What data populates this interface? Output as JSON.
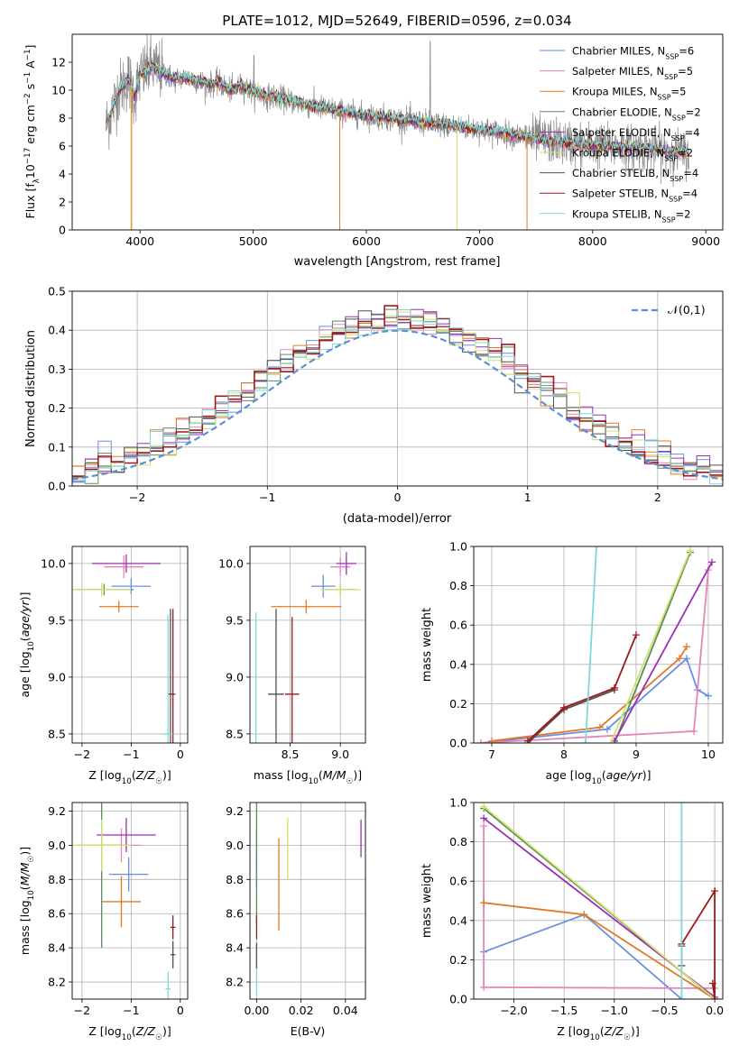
{
  "figure": {
    "title": "PLATE=1012, MJD=52649, FIBERID=0596, z=0.034"
  },
  "series": [
    {
      "key": "cm",
      "name": "Chabrier MILES",
      "nssp": 6,
      "color": "#6a8ee0"
    },
    {
      "key": "sm",
      "name": "Salpeter MILES",
      "nssp": 5,
      "color": "#e683b8"
    },
    {
      "key": "km",
      "name": "Kroupa MILES",
      "nssp": 5,
      "color": "#e07a28"
    },
    {
      "key": "ce",
      "name": "Chabrier ELODIE",
      "nssp": 2,
      "color": "#5b8a5b"
    },
    {
      "key": "se",
      "name": "Salpeter ELODIE",
      "nssp": 4,
      "color": "#9b2fb5"
    },
    {
      "key": "ke",
      "name": "Kroupa ELODIE",
      "nssp": 2,
      "color": "#cfe26a"
    },
    {
      "key": "cs",
      "name": "Chabrier STELIB",
      "nssp": 4,
      "color": "#505050"
    },
    {
      "key": "ss",
      "name": "Salpeter STELIB",
      "nssp": 4,
      "color": "#9e1a1a"
    },
    {
      "key": "ks",
      "name": "Kroupa STELIB",
      "nssp": 2,
      "color": "#7fd8d8"
    }
  ],
  "nssp_label": "N",
  "nssp_sub": "SSP",
  "chart_data": [
    {
      "id": "spectrum",
      "type": "line",
      "xlabel": "wavelength [Angstrom, rest frame]",
      "ylabel": "Flux [f_λ 10^-17 erg cm^-2 s^-1 A^-1]",
      "xlim": [
        3400,
        9150
      ],
      "ylim": [
        0,
        14
      ],
      "xticks": [
        4000,
        5000,
        6000,
        7000,
        8000,
        9000
      ],
      "yticks": [
        0,
        2,
        4,
        6,
        8,
        10,
        12
      ],
      "model_x": [
        3700,
        3750,
        3800,
        3900,
        3950,
        4000,
        4100,
        4200,
        4300,
        4400,
        4500,
        4600,
        4700,
        4800,
        4860,
        4900,
        5000,
        5100,
        5200,
        5300,
        5500,
        5700,
        5900,
        6100,
        6300,
        6500,
        6700,
        6900,
        7100,
        7300,
        7500,
        7700,
        7900,
        8100,
        8300,
        8500,
        8700,
        8850
      ],
      "model_y": [
        7.5,
        8.5,
        9.8,
        10.8,
        9.6,
        11.0,
        11.7,
        11.3,
        10.8,
        10.9,
        10.7,
        10.4,
        10.5,
        10.0,
        10.2,
        10.3,
        9.9,
        9.6,
        9.5,
        9.3,
        8.9,
        8.6,
        8.3,
        8.1,
        7.9,
        7.7,
        7.5,
        7.3,
        7.1,
        6.8,
        6.5,
        6.3,
        6.1,
        6.0,
        5.9,
        5.8,
        5.6,
        5.5
      ]
    },
    {
      "id": "residuals",
      "type": "histogram",
      "xlabel": "(data-model)/error",
      "ylabel": "Normed distribution",
      "xlim": [
        -2.5,
        2.5
      ],
      "ylim": [
        0,
        0.5
      ],
      "xticks": [
        -2,
        -1,
        0,
        1,
        2
      ],
      "yticks": [
        0.0,
        0.1,
        0.2,
        0.3,
        0.4,
        0.5
      ],
      "reference_label": "𝒩(0,1)",
      "bin_width": 0.1
    },
    {
      "id": "age-vs-Z",
      "type": "scatter",
      "xlabel": "Z [log10(Z/Z☉)]",
      "ylabel": "age [log10(age/yr)]",
      "xlim": [
        -2.2,
        0.15
      ],
      "ylim": [
        8.42,
        10.15
      ],
      "xticks": [
        -2,
        -1,
        0
      ],
      "yticks": [
        8.5,
        9.0,
        9.5,
        10.0
      ],
      "points": [
        {
          "s": "cm",
          "x": -1.0,
          "y": 9.8,
          "xe": 0.4,
          "ye": 0.07
        },
        {
          "s": "sm",
          "x": -1.15,
          "y": 9.97,
          "xe": 0.4,
          "ye": 0.1
        },
        {
          "s": "km",
          "x": -1.25,
          "y": 9.62,
          "xe": 0.4,
          "ye": 0.05
        },
        {
          "s": "ce",
          "x": -1.55,
          "y": 9.77,
          "xe": 0.6,
          "ye": 0.05
        },
        {
          "s": "se",
          "x": -1.1,
          "y": 10.0,
          "xe": 0.7,
          "ye": 0.08
        },
        {
          "s": "ke",
          "x": -1.6,
          "y": 9.77,
          "xe": 0.6,
          "ye": 0.06
        },
        {
          "s": "cs",
          "x": -0.2,
          "y": 8.85,
          "xe": 0.05,
          "ye": 0.75
        },
        {
          "s": "ss",
          "x": -0.15,
          "y": 8.85,
          "xe": 0.05,
          "ye": 0.75
        },
        {
          "s": "ks",
          "x": -0.25,
          "y": 8.5,
          "xe": 0.1,
          "ye": 1.05
        }
      ]
    },
    {
      "id": "age-vs-mass",
      "type": "scatter",
      "xlabel": "mass [log10(M/M☉)]",
      "ylabel": "",
      "xlim": [
        8.1,
        9.25
      ],
      "ylim": [
        8.42,
        10.15
      ],
      "xticks": [
        8.5,
        9.0
      ],
      "yticks": [
        8.5,
        9.0,
        9.5,
        10.0
      ],
      "points": [
        {
          "s": "cm",
          "x": 8.83,
          "y": 9.8,
          "xe": 0.12,
          "ye": 0.1
        },
        {
          "s": "sm",
          "x": 9.0,
          "y": 9.97,
          "xe": 0.1,
          "ye": 0.08
        },
        {
          "s": "km",
          "x": 8.66,
          "y": 9.62,
          "xe": 0.35,
          "ye": 0.06
        },
        {
          "s": "ce",
          "x": 9.0,
          "y": 9.77,
          "xe": 0.15,
          "ye": 0.05
        },
        {
          "s": "se",
          "x": 9.06,
          "y": 10.0,
          "xe": 0.1,
          "ye": 0.1
        },
        {
          "s": "ke",
          "x": 9.0,
          "y": 9.77,
          "xe": 0.2,
          "ye": 0.05
        },
        {
          "s": "cs",
          "x": 8.36,
          "y": 8.85,
          "xe": 0.08,
          "ye": 0.75
        },
        {
          "s": "ss",
          "x": 8.52,
          "y": 8.85,
          "xe": 0.07,
          "ye": 0.68
        },
        {
          "s": "ks",
          "x": 8.16,
          "y": 8.5,
          "xe": 0.0,
          "ye": 1.07
        }
      ]
    },
    {
      "id": "weight-vs-age",
      "type": "line",
      "xlabel": "age [log10(age/yr)]",
      "ylabel": "mass weight",
      "xlim": [
        6.75,
        10.2
      ],
      "ylim": [
        0,
        1
      ],
      "xticks": [
        7,
        8,
        9,
        10
      ],
      "yticks": [
        0.0,
        0.2,
        0.4,
        0.6,
        0.8,
        1.0
      ],
      "lines": [
        {
          "s": "cm",
          "x": [
            6.85,
            8.6,
            9.7,
            9.85,
            10.0
          ],
          "y": [
            0.0,
            0.07,
            0.43,
            0.27,
            0.24
          ]
        },
        {
          "s": "sm",
          "x": [
            6.85,
            9.8,
            10.0
          ],
          "y": [
            0.0,
            0.06,
            0.88
          ]
        },
        {
          "s": "km",
          "x": [
            7.0,
            8.5,
            9.6,
            9.7
          ],
          "y": [
            0.01,
            0.08,
            0.43,
            0.49
          ]
        },
        {
          "s": "ce",
          "x": [
            8.7,
            9.75
          ],
          "y": [
            0.0,
            0.97
          ]
        },
        {
          "s": "se",
          "x": [
            8.7,
            10.05
          ],
          "y": [
            0.01,
            0.92
          ]
        },
        {
          "s": "ke",
          "x": [
            8.65,
            9.75
          ],
          "y": [
            0.0,
            0.98
          ]
        },
        {
          "s": "cs",
          "x": [
            7.5,
            8.0,
            8.7
          ],
          "y": [
            0.0,
            0.17,
            0.27
          ]
        },
        {
          "s": "ss",
          "x": [
            7.5,
            8.0,
            8.7,
            9.0
          ],
          "y": [
            0.01,
            0.18,
            0.28,
            0.55
          ]
        },
        {
          "s": "ks",
          "x": [
            8.3,
            8.45
          ],
          "y": [
            0.0,
            1.0
          ]
        }
      ]
    },
    {
      "id": "mass-vs-Z",
      "type": "scatter",
      "xlabel": "Z [log10(Z/Z☉)]",
      "ylabel": "mass [log10(M/M☉)]",
      "xlim": [
        -2.2,
        0.15
      ],
      "ylim": [
        8.1,
        9.25
      ],
      "xticks": [
        -2,
        -1,
        0
      ],
      "yticks": [
        8.2,
        8.4,
        8.6,
        8.8,
        9.0,
        9.2
      ],
      "points": [
        {
          "s": "cm",
          "x": -1.05,
          "y": 8.83,
          "xe": 0.4,
          "ye": 0.1
        },
        {
          "s": "sm",
          "x": -1.2,
          "y": 9.0,
          "xe": 0.4,
          "ye": 0.1
        },
        {
          "s": "km",
          "x": -1.2,
          "y": 8.67,
          "xe": 0.4,
          "ye": 0.15
        },
        {
          "s": "ce",
          "x": -1.6,
          "y": 9.0,
          "xe": 0.5,
          "ye": 0.6
        },
        {
          "s": "se",
          "x": -1.1,
          "y": 9.06,
          "xe": 0.6,
          "ye": 0.1
        },
        {
          "s": "ke",
          "x": -1.6,
          "y": 9.0,
          "xe": 0.6,
          "ye": 0.15
        },
        {
          "s": "cs",
          "x": -0.15,
          "y": 8.36,
          "xe": 0.05,
          "ye": 0.08
        },
        {
          "s": "ss",
          "x": -0.15,
          "y": 8.52,
          "xe": 0.05,
          "ye": 0.07
        },
        {
          "s": "ks",
          "x": -0.25,
          "y": 8.16,
          "xe": 0.05,
          "ye": 0.1
        }
      ]
    },
    {
      "id": "mass-vs-EBV",
      "type": "scatter",
      "xlabel": "E(B-V)",
      "ylabel": "",
      "xlim": [
        -0.003,
        0.049
      ],
      "ylim": [
        8.1,
        9.25
      ],
      "xticks": [
        0.0,
        0.02,
        0.04
      ],
      "yticks": [
        8.2,
        8.4,
        8.6,
        8.8,
        9.0,
        9.2
      ],
      "points": [
        {
          "s": "cm",
          "x": 0.0,
          "y": 8.85,
          "xe": 0.0,
          "ye": 0.1
        },
        {
          "s": "sm",
          "x": 0.0,
          "y": 9.0,
          "xe": 0.0,
          "ye": 0.1
        },
        {
          "s": "km",
          "x": 0.01,
          "y": 8.77,
          "xe": 0.0,
          "ye": 0.27
        },
        {
          "s": "ce",
          "x": 0.0,
          "y": 8.9,
          "xe": 0.0,
          "ye": 0.35
        },
        {
          "s": "se",
          "x": 0.047,
          "y": 9.04,
          "xe": 0.0,
          "ye": 0.11
        },
        {
          "s": "ke",
          "x": 0.014,
          "y": 8.98,
          "xe": 0.0,
          "ye": 0.18
        },
        {
          "s": "cs",
          "x": 0.0,
          "y": 8.35,
          "xe": 0.0,
          "ye": 0.08
        },
        {
          "s": "ss",
          "x": 0.0,
          "y": 8.52,
          "xe": 0.0,
          "ye": 0.07
        },
        {
          "s": "ks",
          "x": 0.0,
          "y": 8.2,
          "xe": 0.0,
          "ye": 0.08
        }
      ]
    },
    {
      "id": "weight-vs-Z",
      "type": "line",
      "xlabel": "Z [log10(Z/Z☉)]",
      "ylabel": "mass weight",
      "xlim": [
        -2.4,
        0.08
      ],
      "ylim": [
        0,
        1
      ],
      "xticks": [
        -2.0,
        -1.5,
        -1.0,
        -0.5,
        0.0
      ],
      "yticks": [
        0.0,
        0.2,
        0.4,
        0.6,
        0.8,
        1.0
      ],
      "lines": [
        {
          "s": "cm",
          "x": [
            -2.3,
            -1.3,
            -0.33,
            -0.33
          ],
          "y": [
            0.24,
            0.43,
            0.0,
            0.0
          ]
        },
        {
          "s": "sm",
          "x": [
            -2.3,
            -2.3,
            0.0,
            0.0
          ],
          "y": [
            0.88,
            0.06,
            0.055,
            0.0
          ]
        },
        {
          "s": "km",
          "x": [
            -2.3,
            -1.3,
            0.0
          ],
          "y": [
            0.49,
            0.43,
            0.0
          ]
        },
        {
          "s": "ce",
          "x": [
            -2.3,
            0.0
          ],
          "y": [
            0.97,
            0.0
          ]
        },
        {
          "s": "se",
          "x": [
            -2.3,
            0.0
          ],
          "y": [
            0.92,
            0.01
          ]
        },
        {
          "s": "ke",
          "x": [
            -2.3,
            0.0
          ],
          "y": [
            0.98,
            0.0
          ]
        },
        {
          "s": "cs",
          "x": [
            -0.33,
            -0.33
          ],
          "y": [
            0.27,
            0.17
          ]
        },
        {
          "s": "ss",
          "x": [
            -0.33,
            0.0,
            0.0,
            -0.02
          ],
          "y": [
            0.28,
            0.55,
            0.0,
            0.08
          ]
        },
        {
          "s": "ks",
          "x": [
            -0.33,
            -0.33
          ],
          "y": [
            0.0,
            1.0
          ]
        }
      ]
    }
  ]
}
